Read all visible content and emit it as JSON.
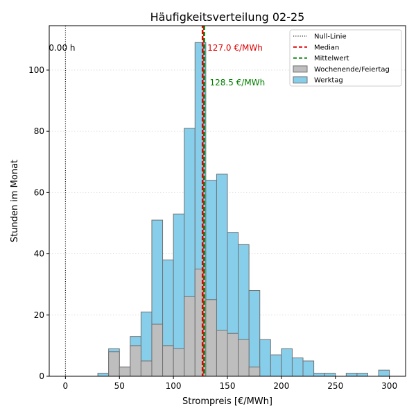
{
  "chart_data": {
    "type": "bar",
    "title": "Häufigkeitsverteilung 02-25",
    "xlabel": "Strompreis [€/MWh]",
    "ylabel": "Stunden im Monat",
    "xlim": [
      -15,
      315
    ],
    "ylim": [
      0,
      114.5
    ],
    "x_ticks": [
      0,
      50,
      100,
      150,
      200,
      250,
      300
    ],
    "y_ticks": [
      0,
      20,
      40,
      60,
      80,
      100
    ],
    "grid": true,
    "legend_position": "top-right",
    "bin_width": 10,
    "bin_starts": [
      30,
      40,
      50,
      60,
      70,
      80,
      90,
      100,
      110,
      120,
      130,
      140,
      150,
      160,
      170,
      180,
      190,
      200,
      210,
      220,
      230,
      240,
      250,
      260,
      270,
      280,
      290
    ],
    "series": [
      {
        "name": "Werktag",
        "color": "#87CEEB",
        "values": [
          1,
          9,
          3,
          13,
          21,
          51,
          38,
          53,
          81,
          109,
          64,
          66,
          47,
          43,
          28,
          12,
          7,
          9,
          6,
          5,
          1,
          1,
          0,
          1,
          1,
          0,
          2
        ]
      },
      {
        "name": "Wochenende/Feiertag",
        "color": "#BEBEBE",
        "values": [
          0,
          8,
          3,
          10,
          5,
          17,
          10,
          9,
          26,
          35,
          25,
          15,
          14,
          12,
          3,
          0,
          0,
          0,
          0,
          0,
          0,
          0,
          0,
          0,
          0,
          0,
          0
        ]
      }
    ],
    "reference_lines": {
      "null_line": {
        "name": "Null-Linie",
        "x": 0,
        "label": "0.00 h",
        "color": "#000000"
      },
      "median": {
        "name": "Median",
        "x": 127.0,
        "label": "127.0 €/MWh",
        "color": "#E00000"
      },
      "mean": {
        "name": "Mittelwert",
        "x": 128.5,
        "label": "128.5 €/MWh",
        "color": "#008000"
      }
    },
    "legend": [
      {
        "label": "Null-Linie",
        "kind": "line",
        "style": "dotted",
        "color": "#000000"
      },
      {
        "label": "Median",
        "kind": "line",
        "style": "dashed",
        "color": "#E00000"
      },
      {
        "label": "Mittelwert",
        "kind": "line",
        "style": "dashed",
        "color": "#008000"
      },
      {
        "label": "Wochenende/Feiertag",
        "kind": "patch",
        "color": "#BEBEBE"
      },
      {
        "label": "Werktag",
        "kind": "patch",
        "color": "#87CEEB"
      }
    ]
  }
}
